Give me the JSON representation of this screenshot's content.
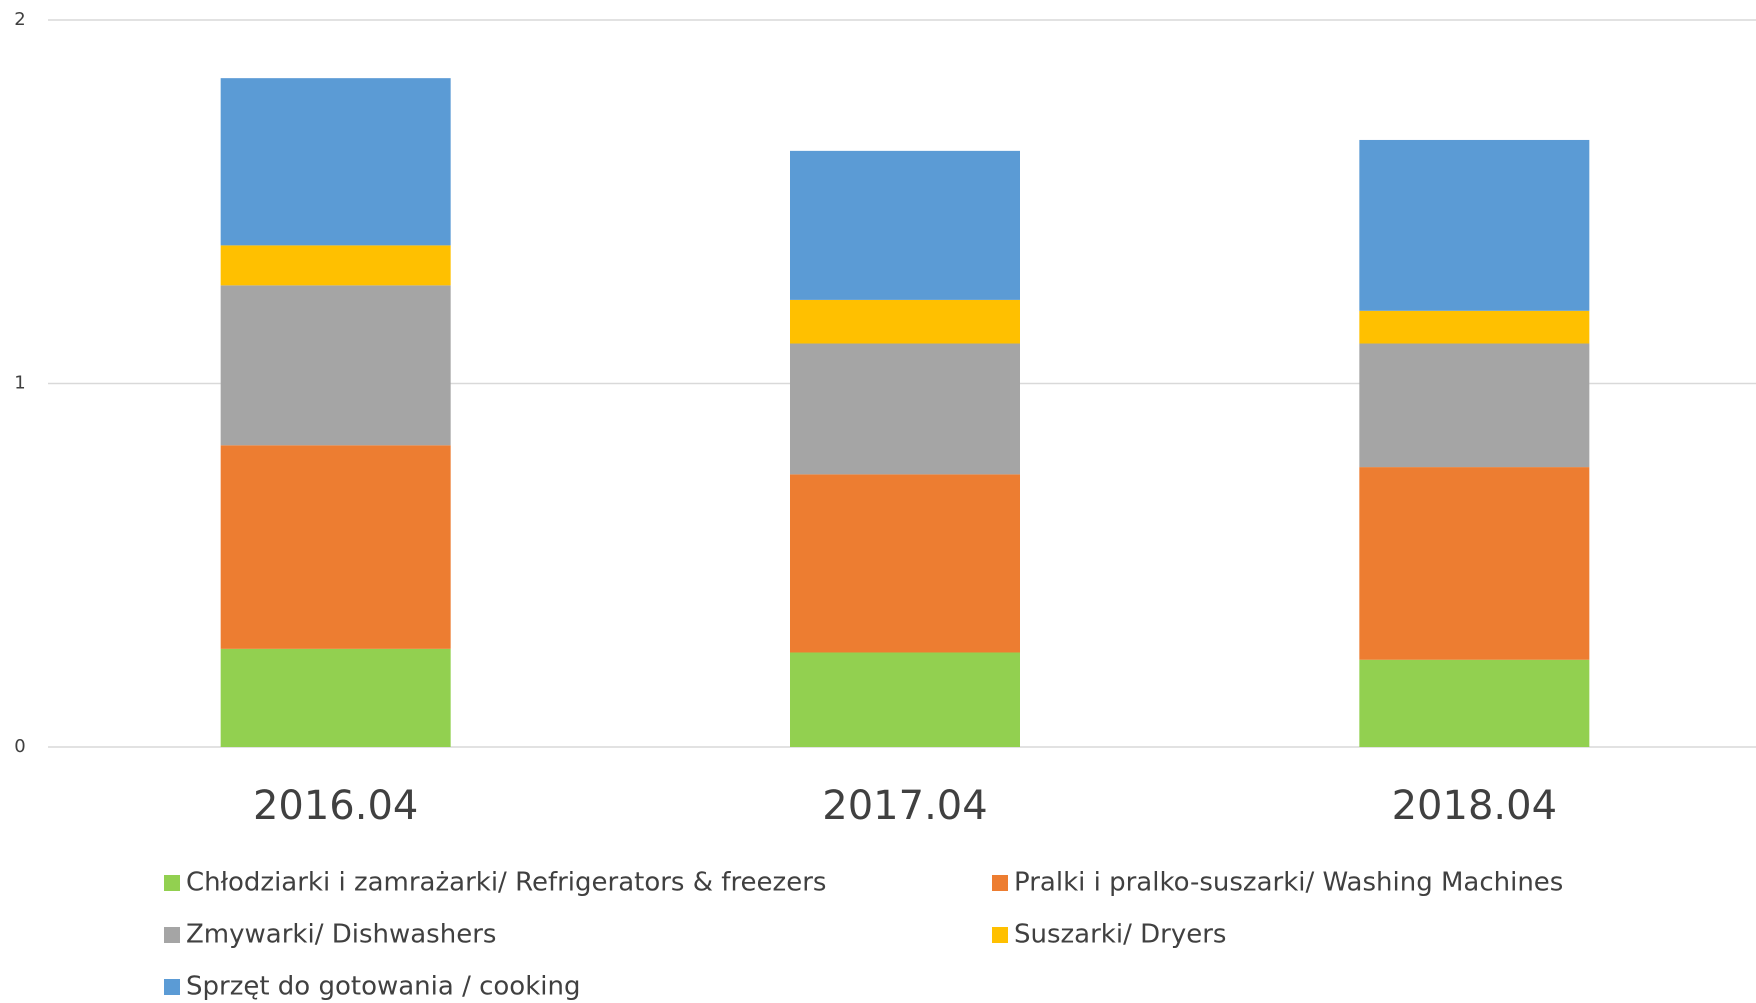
{
  "chart_data": {
    "type": "stacked_bar",
    "categories": [
      "2016.04",
      "2017.04",
      "2018.04"
    ],
    "series": [
      {
        "name": "Chłodziarki i zamrażarki/ Refrigerators & freezers",
        "color": "#92d050",
        "values": [
          0.27,
          0.26,
          0.24
        ]
      },
      {
        "name": "Pralki i pralko-suszarki/ Washing Machines",
        "color": "#ed7d31",
        "values": [
          0.56,
          0.49,
          0.53
        ]
      },
      {
        "name": "Zmywarki/ Dishwashers",
        "color": "#a5a5a5",
        "values": [
          0.44,
          0.36,
          0.34
        ]
      },
      {
        "name": "Suszarki/ Dryers",
        "color": "#ffc000",
        "values": [
          0.11,
          0.12,
          0.09
        ]
      },
      {
        "name": "Sprzęt do gotowania / cooking",
        "color": "#5b9bd5",
        "values": [
          0.46,
          0.41,
          0.47
        ]
      }
    ],
    "ylim": [
      0,
      2
    ],
    "yticks": [
      0,
      1,
      2
    ],
    "grid": true,
    "legend": "bottom"
  }
}
